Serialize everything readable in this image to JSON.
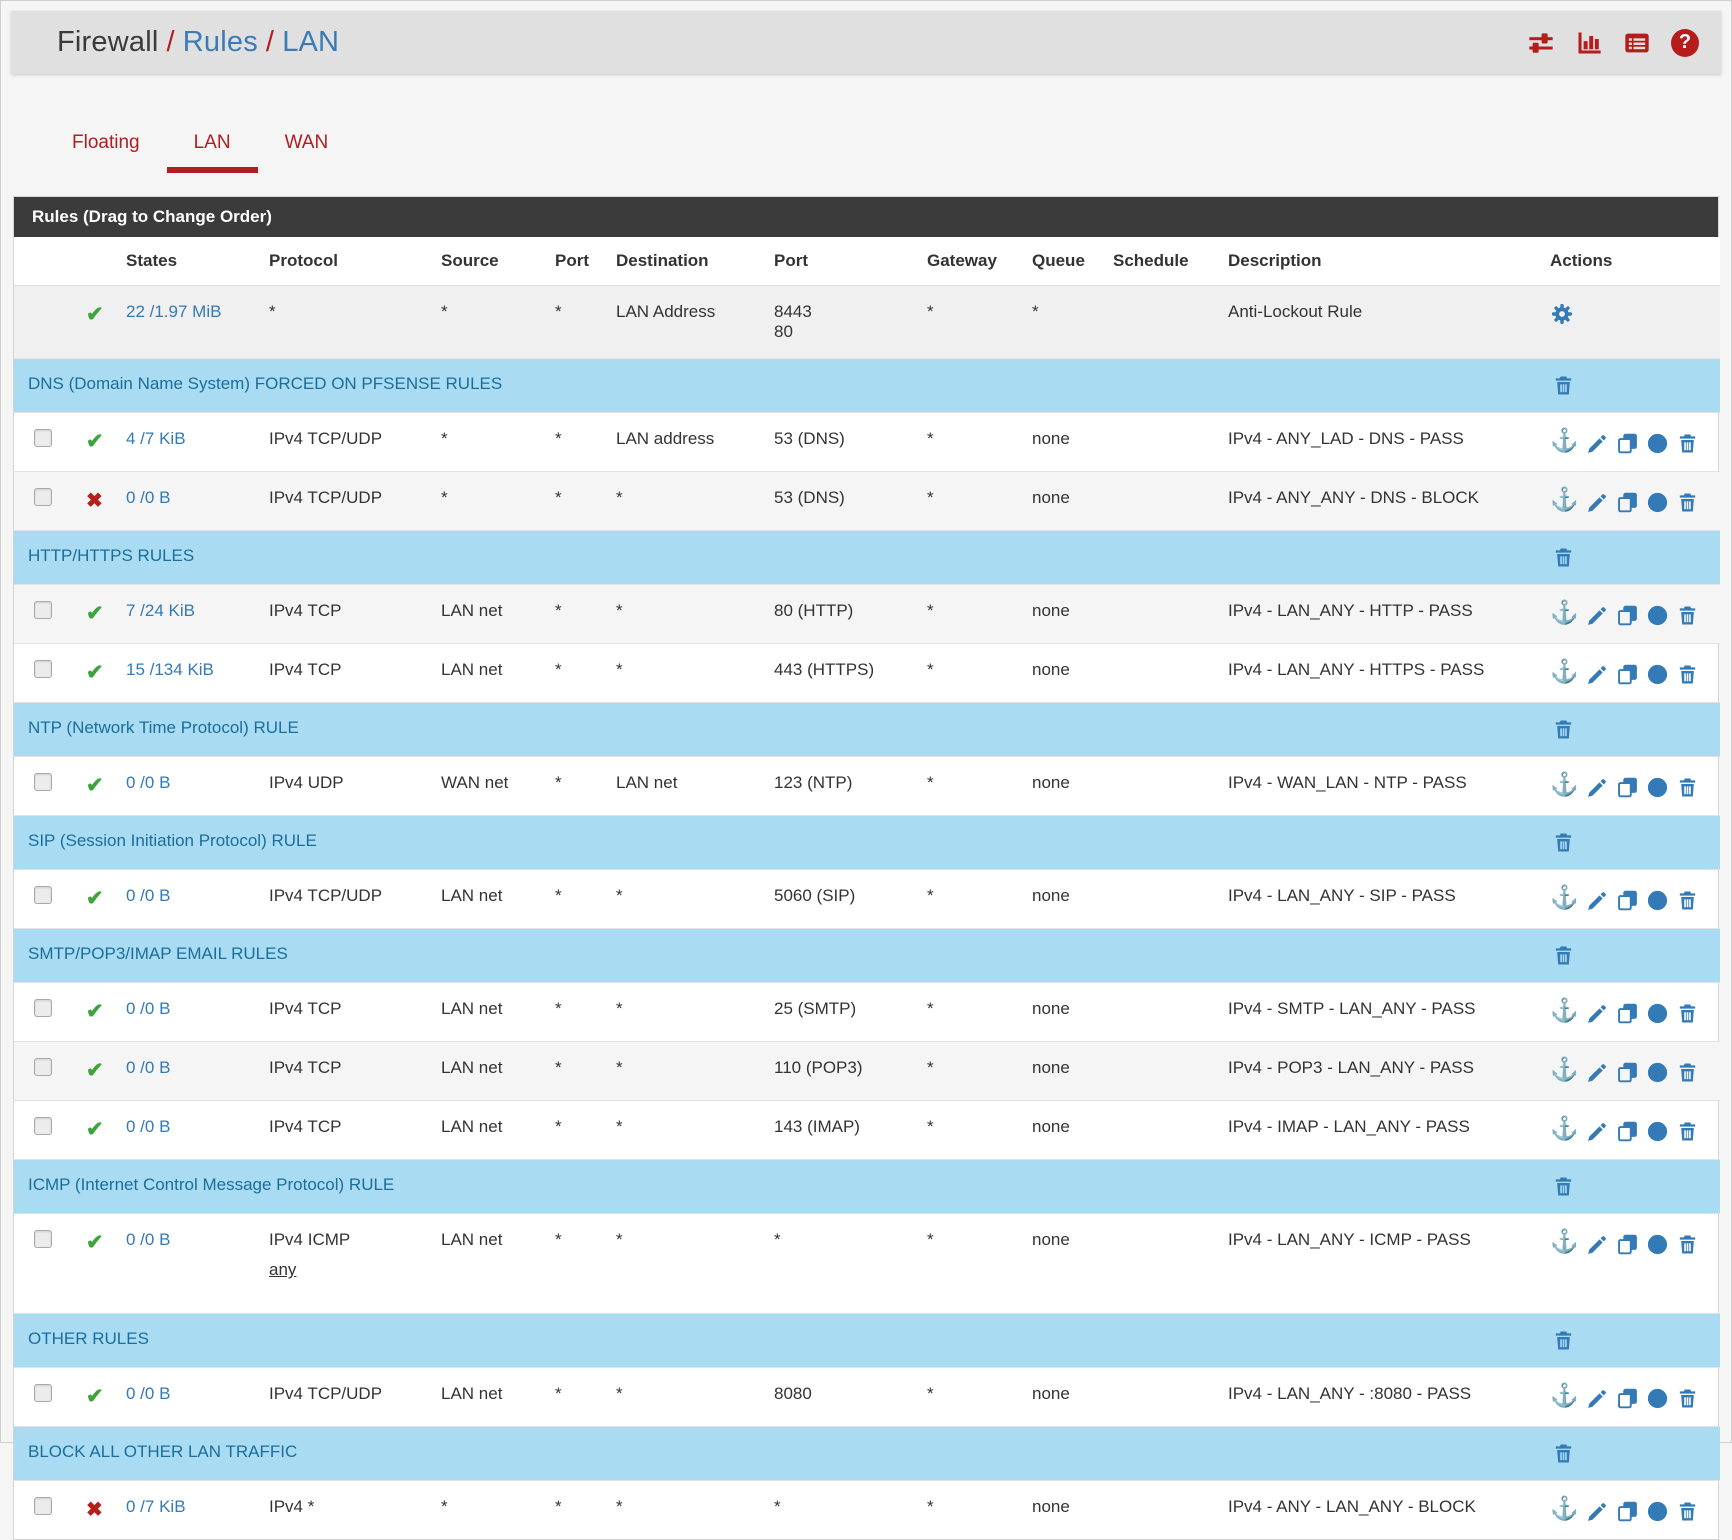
{
  "breadcrumb": {
    "section": "Firewall",
    "separator": "/",
    "page": "Rules",
    "sub": "LAN"
  },
  "header_icons": [
    {
      "name": "filter-options-icon",
      "icon": "sliders"
    },
    {
      "name": "view-states-icon",
      "icon": "bar-chart"
    },
    {
      "name": "view-log-icon",
      "icon": "log"
    },
    {
      "name": "help-icon",
      "icon": "question"
    }
  ],
  "icons": {
    "pass-icon": "✔",
    "block-icon": "✖",
    "anchor-icon": "⚓",
    "question-glyph": "?"
  },
  "colors": {
    "brand_red": "#b71c1c",
    "tab_red": "#b01e23",
    "link_blue": "#337ab7",
    "separator_bg": "#a9dcf2",
    "separator_text": "#1b6d9c",
    "pass_green": "#3da33b",
    "block_red": "#b5201f",
    "panel_header_bg": "#3b3b3b"
  },
  "tabs": [
    {
      "label": "Floating",
      "active": false
    },
    {
      "label": "LAN",
      "active": true
    },
    {
      "label": "WAN",
      "active": false
    }
  ],
  "panel": {
    "title": "Rules (Drag to Change Order)"
  },
  "table": {
    "columns": [
      "",
      "",
      "States",
      "Protocol",
      "Source",
      "Port",
      "Destination",
      "Port",
      "Gateway",
      "Queue",
      "Schedule",
      "Description",
      "Actions"
    ],
    "rows": [
      {
        "type": "rule",
        "internal": true,
        "checkbox": false,
        "status": "pass",
        "states": "22 /1.97 MiB",
        "protocol": "*",
        "source": "*",
        "src_port": "*",
        "destination": "LAN Address",
        "dst_port": "8443\n80",
        "gateway": "*",
        "queue": "*",
        "schedule": "",
        "description": "Anti-Lockout Rule",
        "actions": "gear"
      },
      {
        "type": "separator",
        "label": "DNS (Domain Name System) FORCED ON PFSENSE RULES"
      },
      {
        "type": "rule",
        "checkbox": true,
        "status": "pass",
        "states": "4 /7 KiB",
        "protocol": "IPv4 TCP/UDP",
        "source": "*",
        "src_port": "*",
        "destination": "LAN address",
        "dst_port": "53 (DNS)",
        "gateway": "*",
        "queue": "none",
        "schedule": "",
        "description": "IPv4 - ANY_LAD - DNS - PASS",
        "actions": "full"
      },
      {
        "type": "rule",
        "checkbox": true,
        "status": "block",
        "states": "0 /0 B",
        "protocol": "IPv4 TCP/UDP",
        "source": "*",
        "src_port": "*",
        "destination": "*",
        "dst_port": "53 (DNS)",
        "gateway": "*",
        "queue": "none",
        "schedule": "",
        "description": "IPv4 - ANY_ANY - DNS - BLOCK",
        "actions": "full"
      },
      {
        "type": "separator",
        "label": "HTTP/HTTPS RULES"
      },
      {
        "type": "rule",
        "checkbox": true,
        "status": "pass",
        "states": "7 /24 KiB",
        "protocol": "IPv4 TCP",
        "source": "LAN net",
        "src_port": "*",
        "destination": "*",
        "dst_port": "80 (HTTP)",
        "gateway": "*",
        "queue": "none",
        "schedule": "",
        "description": "IPv4 - LAN_ANY - HTTP - PASS",
        "actions": "full"
      },
      {
        "type": "rule",
        "checkbox": true,
        "status": "pass",
        "states": "15 /134 KiB",
        "protocol": "IPv4 TCP",
        "source": "LAN net",
        "src_port": "*",
        "destination": "*",
        "dst_port": "443 (HTTPS)",
        "gateway": "*",
        "queue": "none",
        "schedule": "",
        "description": "IPv4 - LAN_ANY - HTTPS - PASS",
        "actions": "full"
      },
      {
        "type": "separator",
        "label": "NTP (Network Time Protocol) RULE"
      },
      {
        "type": "rule",
        "checkbox": true,
        "status": "pass",
        "states": "0 /0 B",
        "protocol": "IPv4 UDP",
        "source": "WAN net",
        "src_port": "*",
        "destination": "LAN net",
        "dst_port": "123 (NTP)",
        "gateway": "*",
        "queue": "none",
        "schedule": "",
        "description": "IPv4 - WAN_LAN - NTP - PASS",
        "actions": "full"
      },
      {
        "type": "separator",
        "label": "SIP (Session Initiation Protocol) RULE"
      },
      {
        "type": "rule",
        "checkbox": true,
        "status": "pass",
        "states": "0 /0 B",
        "protocol": "IPv4 TCP/UDP",
        "source": "LAN net",
        "src_port": "*",
        "destination": "*",
        "dst_port": "5060 (SIP)",
        "gateway": "*",
        "queue": "none",
        "schedule": "",
        "description": "IPv4 - LAN_ANY - SIP - PASS",
        "actions": "full"
      },
      {
        "type": "separator",
        "label": "SMTP/POP3/IMAP EMAIL RULES"
      },
      {
        "type": "rule",
        "checkbox": true,
        "status": "pass",
        "states": "0 /0 B",
        "protocol": "IPv4 TCP",
        "source": "LAN net",
        "src_port": "*",
        "destination": "*",
        "dst_port": "25 (SMTP)",
        "gateway": "*",
        "queue": "none",
        "schedule": "",
        "description": "IPv4 - SMTP - LAN_ANY - PASS",
        "actions": "full"
      },
      {
        "type": "rule",
        "checkbox": true,
        "status": "pass",
        "states": "0 /0 B",
        "protocol": "IPv4 TCP",
        "source": "LAN net",
        "src_port": "*",
        "destination": "*",
        "dst_port": "110 (POP3)",
        "gateway": "*",
        "queue": "none",
        "schedule": "",
        "description": "IPv4 - POP3 - LAN_ANY - PASS",
        "actions": "full"
      },
      {
        "type": "rule",
        "checkbox": true,
        "status": "pass",
        "states": "0 /0 B",
        "protocol": "IPv4 TCP",
        "source": "LAN net",
        "src_port": "*",
        "destination": "*",
        "dst_port": "143 (IMAP)",
        "gateway": "*",
        "queue": "none",
        "schedule": "",
        "description": "IPv4 - IMAP - LAN_ANY - PASS",
        "actions": "full"
      },
      {
        "type": "separator",
        "label": "ICMP (Internet Control Message Protocol) RULE"
      },
      {
        "type": "rule",
        "tall": true,
        "checkbox": true,
        "status": "pass",
        "states": "0 /0 B",
        "protocol": "IPv4 ICMP",
        "protocol_sub": "any",
        "source": "LAN net",
        "src_port": "*",
        "destination": "*",
        "dst_port": "*",
        "gateway": "*",
        "queue": "none",
        "schedule": "",
        "description": "IPv4 - LAN_ANY - ICMP - PASS",
        "actions": "full"
      },
      {
        "type": "separator",
        "label": "OTHER RULES"
      },
      {
        "type": "rule",
        "checkbox": true,
        "status": "pass",
        "states": "0 /0 B",
        "protocol": "IPv4 TCP/UDP",
        "source": "LAN net",
        "src_port": "*",
        "destination": "*",
        "dst_port": "8080",
        "gateway": "*",
        "queue": "none",
        "schedule": "",
        "description": "IPv4 - LAN_ANY - :8080 - PASS",
        "actions": "full"
      },
      {
        "type": "separator",
        "label": "BLOCK ALL OTHER LAN TRAFFIC"
      },
      {
        "type": "rule",
        "checkbox": true,
        "status": "block",
        "states": "0 /7 KiB",
        "protocol": "IPv4 *",
        "source": "*",
        "src_port": "*",
        "destination": "*",
        "dst_port": "*",
        "gateway": "*",
        "queue": "none",
        "schedule": "",
        "description": "IPv4 - ANY - LAN_ANY - BLOCK",
        "actions": "full"
      }
    ]
  }
}
